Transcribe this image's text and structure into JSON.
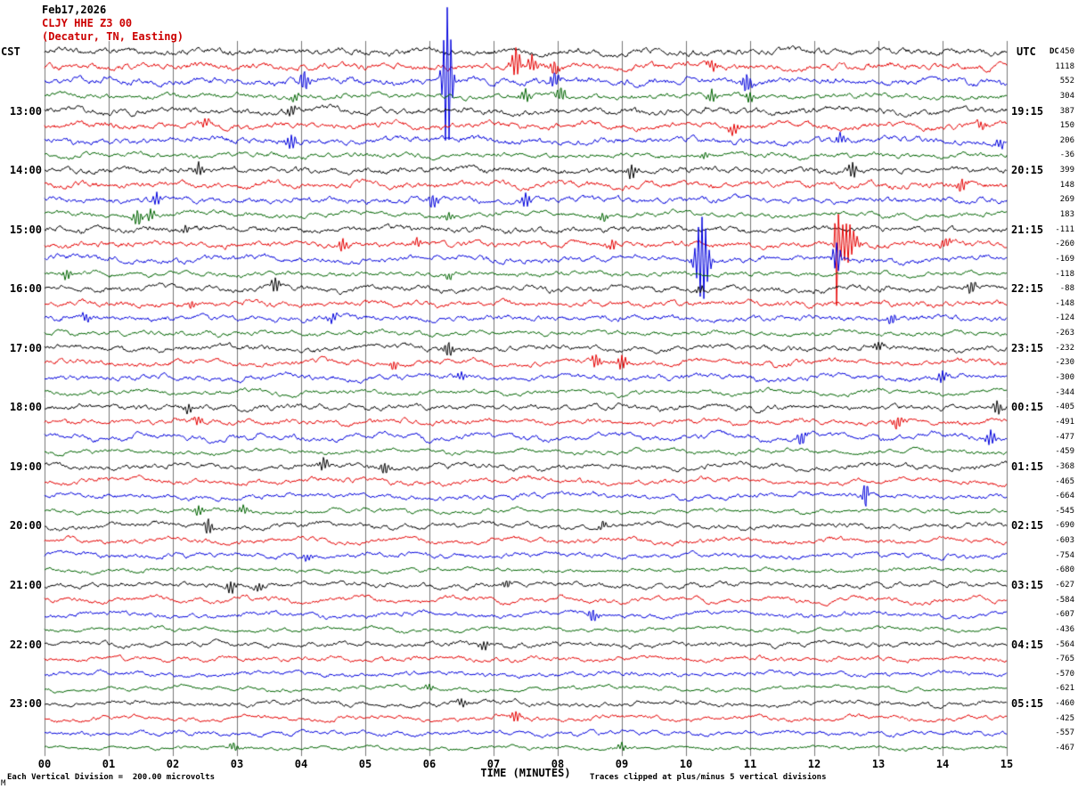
{
  "title": {
    "date": "Feb17,2026",
    "station": "CLJY HHE Z3 00",
    "location": "(Decatur, TN, Easting)"
  },
  "axes": {
    "left_tz": "CST",
    "right_tz": "UTC",
    "dc_header": "DC",
    "x_title": "TIME (MINUTES)",
    "minute_labels": [
      "00",
      "01",
      "02",
      "03",
      "04",
      "05",
      "06",
      "07",
      "08",
      "09",
      "10",
      "11",
      "12",
      "13",
      "14",
      "15"
    ]
  },
  "footer": {
    "left": "Each Vertical Division =  200.00 microvolts",
    "right": "Traces clipped at plus/minus 5 vertical divisions",
    "corner": "M"
  },
  "colors": {
    "black": "#000000",
    "red": "#e60000",
    "blue": "#0000dd",
    "green": "#006400",
    "grid": "#777777",
    "title_red": "#cc0000"
  },
  "chart_data": {
    "type": "line",
    "subtype": "seismogram-helicorder",
    "x_axis": {
      "label": "TIME (MINUTES)",
      "min": 0,
      "max": 15
    },
    "minutes_per_line": 15,
    "scale_note": "Each Vertical Division = 200.00 microvolts",
    "clip_note": "Traces clipped at plus/minus 5 vertical divisions",
    "trace_color_cycle": [
      "black",
      "red",
      "blue",
      "green"
    ],
    "rows": [
      {
        "dc": "450",
        "cst": "",
        "utc": ""
      },
      {
        "dc": "1118",
        "cst": "",
        "utc": ""
      },
      {
        "dc": "552",
        "cst": "",
        "utc": ""
      },
      {
        "dc": "304",
        "cst": "",
        "utc": ""
      },
      {
        "dc": "387",
        "cst": "13:00",
        "utc": "19:15"
      },
      {
        "dc": "150",
        "cst": "",
        "utc": ""
      },
      {
        "dc": "206",
        "cst": "",
        "utc": ""
      },
      {
        "dc": "-36",
        "cst": "",
        "utc": ""
      },
      {
        "dc": "399",
        "cst": "14:00",
        "utc": "20:15"
      },
      {
        "dc": "148",
        "cst": "",
        "utc": ""
      },
      {
        "dc": "269",
        "cst": "",
        "utc": ""
      },
      {
        "dc": "183",
        "cst": "",
        "utc": ""
      },
      {
        "dc": "-111",
        "cst": "15:00",
        "utc": "21:15"
      },
      {
        "dc": "-260",
        "cst": "",
        "utc": ""
      },
      {
        "dc": "-169",
        "cst": "",
        "utc": ""
      },
      {
        "dc": "-118",
        "cst": "",
        "utc": ""
      },
      {
        "dc": "-88",
        "cst": "16:00",
        "utc": "22:15"
      },
      {
        "dc": "-148",
        "cst": "",
        "utc": ""
      },
      {
        "dc": "-124",
        "cst": "",
        "utc": ""
      },
      {
        "dc": "-263",
        "cst": "",
        "utc": ""
      },
      {
        "dc": "-232",
        "cst": "17:00",
        "utc": "23:15"
      },
      {
        "dc": "-230",
        "cst": "",
        "utc": ""
      },
      {
        "dc": "-300",
        "cst": "",
        "utc": ""
      },
      {
        "dc": "-344",
        "cst": "",
        "utc": ""
      },
      {
        "dc": "-405",
        "cst": "18:00",
        "utc": "00:15"
      },
      {
        "dc": "-491",
        "cst": "",
        "utc": ""
      },
      {
        "dc": "-477",
        "cst": "",
        "utc": ""
      },
      {
        "dc": "-459",
        "cst": "",
        "utc": ""
      },
      {
        "dc": "-368",
        "cst": "19:00",
        "utc": "01:15"
      },
      {
        "dc": "-465",
        "cst": "",
        "utc": ""
      },
      {
        "dc": "-664",
        "cst": "",
        "utc": ""
      },
      {
        "dc": "-545",
        "cst": "",
        "utc": ""
      },
      {
        "dc": "-690",
        "cst": "20:00",
        "utc": "02:15"
      },
      {
        "dc": "-603",
        "cst": "",
        "utc": ""
      },
      {
        "dc": "-754",
        "cst": "",
        "utc": ""
      },
      {
        "dc": "-680",
        "cst": "",
        "utc": ""
      },
      {
        "dc": "-627",
        "cst": "21:00",
        "utc": "03:15"
      },
      {
        "dc": "-584",
        "cst": "",
        "utc": ""
      },
      {
        "dc": "-607",
        "cst": "",
        "utc": ""
      },
      {
        "dc": "-436",
        "cst": "",
        "utc": ""
      },
      {
        "dc": "-564",
        "cst": "22:00",
        "utc": "04:15"
      },
      {
        "dc": "-765",
        "cst": "",
        "utc": ""
      },
      {
        "dc": "-570",
        "cst": "",
        "utc": ""
      },
      {
        "dc": "-621",
        "cst": "",
        "utc": ""
      },
      {
        "dc": "-460",
        "cst": "23:00",
        "utc": "05:15"
      },
      {
        "dc": "-425",
        "cst": "",
        "utc": ""
      },
      {
        "dc": "-557",
        "cst": "",
        "utc": ""
      },
      {
        "dc": "-467",
        "cst": "",
        "utc": ""
      }
    ],
    "events": [
      [
        1,
        7.35,
        16
      ],
      [
        1,
        7.6,
        10
      ],
      [
        1,
        7.95,
        9
      ],
      [
        1,
        10.4,
        6
      ],
      [
        2,
        4.05,
        12
      ],
      [
        2,
        6.28,
        85,
        0.05
      ],
      [
        2,
        7.95,
        10
      ],
      [
        2,
        10.95,
        12
      ],
      [
        3,
        3.9,
        5
      ],
      [
        3,
        7.5,
        7
      ],
      [
        3,
        8.05,
        9
      ],
      [
        3,
        10.4,
        7
      ],
      [
        3,
        11.0,
        5
      ],
      [
        4,
        3.85,
        6
      ],
      [
        5,
        2.5,
        5
      ],
      [
        5,
        10.75,
        7
      ],
      [
        5,
        14.6,
        5
      ],
      [
        6,
        3.85,
        8
      ],
      [
        6,
        12.4,
        6
      ],
      [
        6,
        14.9,
        5
      ],
      [
        7,
        10.3,
        4
      ],
      [
        8,
        2.4,
        7
      ],
      [
        8,
        9.15,
        8
      ],
      [
        8,
        12.6,
        9
      ],
      [
        9,
        14.3,
        8
      ],
      [
        10,
        1.75,
        7
      ],
      [
        10,
        6.05,
        9
      ],
      [
        10,
        7.5,
        8
      ],
      [
        11,
        1.45,
        9
      ],
      [
        11,
        1.65,
        7
      ],
      [
        11,
        6.3,
        5
      ],
      [
        11,
        8.7,
        5
      ],
      [
        12,
        2.2,
        4
      ],
      [
        13,
        4.65,
        7
      ],
      [
        13,
        5.8,
        5
      ],
      [
        13,
        8.85,
        6
      ],
      [
        13,
        12.35,
        -70,
        0.02
      ],
      [
        13,
        12.5,
        22,
        0.1
      ],
      [
        13,
        14.05,
        7
      ],
      [
        14,
        10.25,
        48,
        0.07
      ],
      [
        14,
        12.35,
        16
      ],
      [
        15,
        0.35,
        5
      ],
      [
        15,
        6.3,
        4
      ],
      [
        16,
        3.6,
        8
      ],
      [
        16,
        10.2,
        5
      ],
      [
        16,
        14.45,
        7
      ],
      [
        17,
        2.3,
        5
      ],
      [
        18,
        0.65,
        6
      ],
      [
        18,
        4.5,
        5
      ],
      [
        18,
        13.2,
        7
      ],
      [
        20,
        6.3,
        8
      ],
      [
        20,
        13.0,
        5
      ],
      [
        21,
        5.45,
        5
      ],
      [
        21,
        8.6,
        7
      ],
      [
        21,
        9.0,
        9
      ],
      [
        22,
        6.5,
        5
      ],
      [
        22,
        14.0,
        7
      ],
      [
        24,
        2.25,
        6
      ],
      [
        24,
        14.85,
        8
      ],
      [
        25,
        2.4,
        5
      ],
      [
        25,
        13.3,
        7
      ],
      [
        26,
        11.8,
        8
      ],
      [
        26,
        14.75,
        8
      ],
      [
        28,
        4.35,
        8
      ],
      [
        28,
        5.3,
        7
      ],
      [
        30,
        12.8,
        -18,
        0.03
      ],
      [
        31,
        2.4,
        6
      ],
      [
        31,
        3.1,
        5
      ],
      [
        32,
        2.55,
        9
      ],
      [
        32,
        8.7,
        5
      ],
      [
        34,
        4.1,
        4
      ],
      [
        36,
        2.9,
        7
      ],
      [
        36,
        3.35,
        5
      ],
      [
        36,
        7.2,
        5
      ],
      [
        38,
        8.55,
        8
      ],
      [
        40,
        6.85,
        5
      ],
      [
        43,
        6.0,
        4
      ],
      [
        44,
        6.5,
        5
      ],
      [
        45,
        7.35,
        7
      ],
      [
        47,
        2.95,
        5
      ],
      [
        47,
        9.0,
        4
      ]
    ]
  }
}
